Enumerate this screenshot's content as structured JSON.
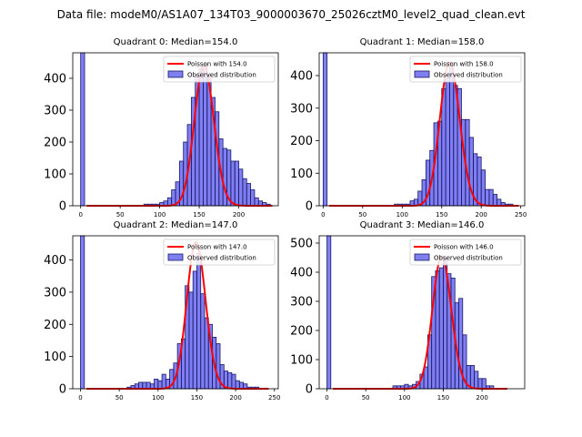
{
  "figure": {
    "title": "Data file: modeM0/AS1A07_134T03_9000003670_25026cztM0_level2_quad_clean.evt"
  },
  "legend": {
    "line_label_prefix": "Poisson with ",
    "hist_label": "Observed distribution"
  },
  "chart_data": [
    {
      "type": "bar",
      "title": "Quadrant 0: Median=154.0",
      "median": 154.0,
      "poisson_mean": 154.0,
      "poisson_label": "Poisson with 154.0",
      "xlim": [
        -10,
        250
      ],
      "ylim": [
        0,
        480
      ],
      "yticks": [
        0,
        100,
        200,
        300,
        400
      ],
      "xticks": [
        0,
        50,
        100,
        150,
        200
      ],
      "bin_width": 5,
      "bins": [
        [
          0,
          480
        ],
        [
          80,
          5
        ],
        [
          85,
          5
        ],
        [
          90,
          5
        ],
        [
          95,
          5
        ],
        [
          100,
          10
        ],
        [
          105,
          15
        ],
        [
          110,
          25
        ],
        [
          115,
          50
        ],
        [
          120,
          75
        ],
        [
          125,
          140
        ],
        [
          130,
          200
        ],
        [
          135,
          255
        ],
        [
          140,
          340
        ],
        [
          145,
          410
        ],
        [
          150,
          430
        ],
        [
          155,
          445
        ],
        [
          160,
          410
        ],
        [
          165,
          340
        ],
        [
          170,
          295
        ],
        [
          175,
          210
        ],
        [
          180,
          180
        ],
        [
          185,
          175
        ],
        [
          190,
          140
        ],
        [
          195,
          140
        ],
        [
          200,
          115
        ],
        [
          205,
          85
        ],
        [
          210,
          70
        ],
        [
          215,
          50
        ],
        [
          220,
          25
        ],
        [
          225,
          15
        ],
        [
          230,
          10
        ],
        [
          235,
          5
        ]
      ],
      "poisson_scale": 440,
      "poisson_range": [
        5,
        240
      ]
    },
    {
      "type": "bar",
      "title": "Quadrant 1: Median=158.0",
      "median": 158.0,
      "poisson_mean": 158.0,
      "poisson_label": "Poisson with 158.0",
      "xlim": [
        -5,
        255
      ],
      "ylim": [
        0,
        470
      ],
      "yticks": [
        0,
        100,
        200,
        300,
        400
      ],
      "xticks": [
        0,
        50,
        100,
        150,
        200,
        250
      ],
      "bin_width": 5,
      "bins": [
        [
          0,
          470
        ],
        [
          90,
          5
        ],
        [
          95,
          5
        ],
        [
          100,
          5
        ],
        [
          105,
          5
        ],
        [
          110,
          15
        ],
        [
          115,
          20
        ],
        [
          120,
          45
        ],
        [
          125,
          80
        ],
        [
          130,
          140
        ],
        [
          135,
          170
        ],
        [
          140,
          255
        ],
        [
          145,
          260
        ],
        [
          150,
          360
        ],
        [
          155,
          390
        ],
        [
          160,
          430
        ],
        [
          165,
          370
        ],
        [
          170,
          360
        ],
        [
          175,
          265
        ],
        [
          180,
          265
        ],
        [
          185,
          210
        ],
        [
          190,
          160
        ],
        [
          195,
          150
        ],
        [
          200,
          110
        ],
        [
          205,
          50
        ],
        [
          210,
          50
        ],
        [
          215,
          35
        ],
        [
          220,
          20
        ],
        [
          225,
          10
        ],
        [
          230,
          5
        ],
        [
          235,
          5
        ]
      ],
      "poisson_scale": 440,
      "poisson_range": [
        5,
        245
      ]
    },
    {
      "type": "bar",
      "title": "Quadrant 2: Median=147.0",
      "median": 147.0,
      "poisson_mean": 147.0,
      "poisson_label": "Poisson with 147.0",
      "xlim": [
        -10,
        255
      ],
      "ylim": [
        0,
        475
      ],
      "yticks": [
        0,
        100,
        200,
        300,
        400
      ],
      "xticks": [
        0,
        50,
        100,
        150,
        200,
        250
      ],
      "bin_width": 5,
      "bins": [
        [
          0,
          475
        ],
        [
          60,
          5
        ],
        [
          65,
          10
        ],
        [
          70,
          15
        ],
        [
          75,
          20
        ],
        [
          80,
          20
        ],
        [
          85,
          20
        ],
        [
          90,
          15
        ],
        [
          95,
          30
        ],
        [
          100,
          25
        ],
        [
          105,
          45
        ],
        [
          110,
          30
        ],
        [
          115,
          60
        ],
        [
          120,
          80
        ],
        [
          125,
          140
        ],
        [
          130,
          155
        ],
        [
          135,
          320
        ],
        [
          140,
          300
        ],
        [
          145,
          365
        ],
        [
          150,
          420
        ],
        [
          155,
          295
        ],
        [
          160,
          220
        ],
        [
          165,
          200
        ],
        [
          170,
          160
        ],
        [
          175,
          140
        ],
        [
          180,
          75
        ],
        [
          185,
          55
        ],
        [
          190,
          50
        ],
        [
          195,
          45
        ],
        [
          200,
          25
        ],
        [
          205,
          20
        ],
        [
          210,
          15
        ],
        [
          215,
          5
        ],
        [
          220,
          5
        ],
        [
          225,
          5
        ]
      ],
      "poisson_scale": 455,
      "poisson_range": [
        5,
        240
      ]
    },
    {
      "type": "bar",
      "title": "Quadrant 3: Median=146.0",
      "median": 146.0,
      "poisson_mean": 146.0,
      "poisson_label": "Poisson with 146.0",
      "xlim": [
        -10,
        255
      ],
      "ylim": [
        0,
        525
      ],
      "yticks": [
        0,
        100,
        200,
        300,
        400,
        500
      ],
      "xticks": [
        0,
        50,
        100,
        150,
        200
      ],
      "bin_width": 5,
      "bins": [
        [
          0,
          525
        ],
        [
          85,
          10
        ],
        [
          90,
          10
        ],
        [
          95,
          10
        ],
        [
          100,
          15
        ],
        [
          105,
          10
        ],
        [
          110,
          15
        ],
        [
          115,
          25
        ],
        [
          120,
          50
        ],
        [
          125,
          75
        ],
        [
          130,
          185
        ],
        [
          135,
          385
        ],
        [
          140,
          405
        ],
        [
          145,
          415
        ],
        [
          150,
          450
        ],
        [
          155,
          395
        ],
        [
          160,
          380
        ],
        [
          165,
          295
        ],
        [
          170,
          310
        ],
        [
          175,
          185
        ],
        [
          180,
          80
        ],
        [
          185,
          80
        ],
        [
          190,
          60
        ],
        [
          195,
          35
        ],
        [
          200,
          35
        ],
        [
          205,
          10
        ],
        [
          210,
          10
        ]
      ],
      "poisson_scale": 455,
      "poisson_range": [
        5,
        230
      ]
    }
  ]
}
